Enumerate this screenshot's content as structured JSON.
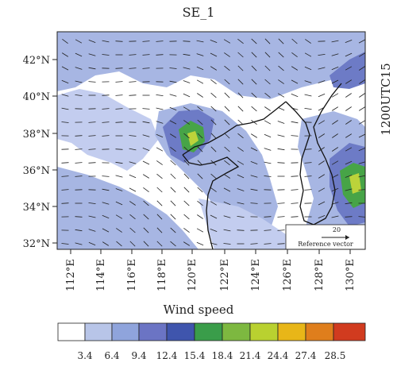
{
  "title": "SE_1",
  "time_label": "1200UTC15",
  "y_ticks": [
    "42°N",
    "40°N",
    "38°N",
    "36°N",
    "34°N",
    "32°N"
  ],
  "x_ticks": [
    "112°E",
    "114°E",
    "116°E",
    "118°E",
    "120°E",
    "122°E",
    "124°E",
    "126°E",
    "128°E",
    "130°E"
  ],
  "reference_vector": {
    "value": "20",
    "label": "Reference vector"
  },
  "colorbar": {
    "title": "Wind speed",
    "colors": [
      "#ffffff",
      "#b8c5e8",
      "#8fa4dc",
      "#6b74c4",
      "#3f55ad",
      "#3a9d4a",
      "#7db840",
      "#b9d130",
      "#e8b618",
      "#df7e1c",
      "#d13b1f"
    ],
    "ticks": [
      "3.4",
      "6.4",
      "9.4",
      "12.4",
      "15.4",
      "18.4",
      "21.4",
      "24.4",
      "27.4",
      "28.5"
    ]
  },
  "map": {
    "lon_range": [
      111,
      131.5
    ],
    "lat_range": [
      31.9,
      43.4
    ],
    "colors": {
      "land_blue": "#a7b6e3",
      "light_blue": "#c3cdef",
      "mid_blue": "#6d7bc6",
      "green": "#47a447",
      "yellow_green": "#bcd33a",
      "coast": "#111111"
    }
  }
}
